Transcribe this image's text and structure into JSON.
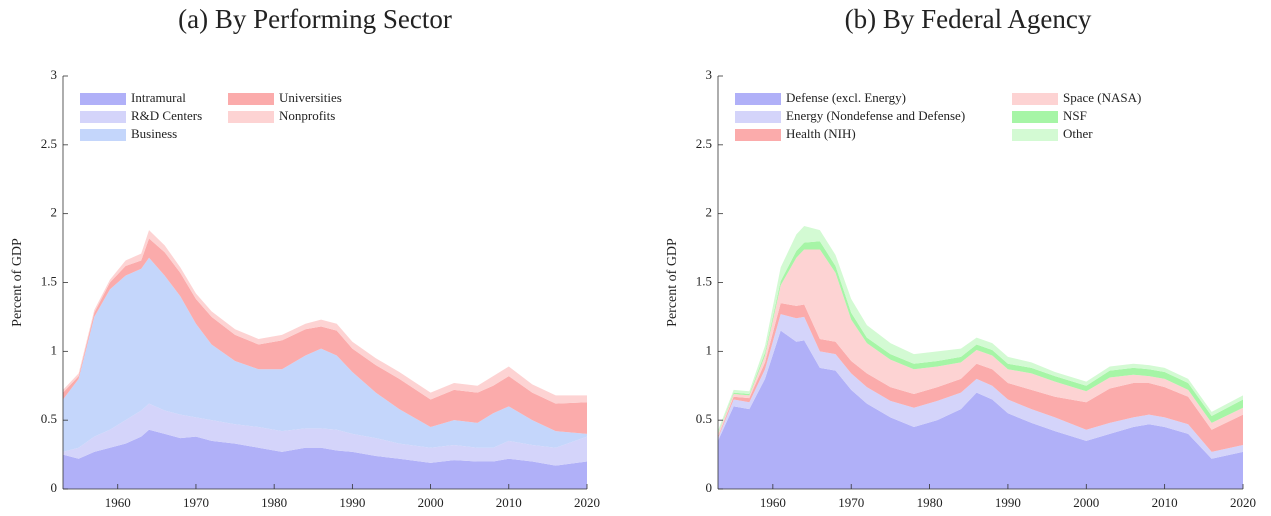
{
  "chart_data": [
    {
      "type": "stacked_area",
      "title": "(a) By Performing Sector",
      "y_label": "Percent of GDP",
      "x": [
        1953,
        1955,
        1957,
        1959,
        1961,
        1963,
        1964,
        1966,
        1968,
        1970,
        1972,
        1975,
        1978,
        1981,
        1984,
        1986,
        1988,
        1990,
        1993,
        1996,
        2000,
        2003,
        2006,
        2008,
        2010,
        2013,
        2016,
        2020
      ],
      "xlim": [
        1953,
        2020
      ],
      "xticks": [
        1960,
        1970,
        1980,
        1990,
        2000,
        2010,
        2020
      ],
      "ylim": [
        0,
        3
      ],
      "yticks": [
        0,
        0.5,
        1,
        1.5,
        2,
        2.5,
        3
      ],
      "series": [
        {
          "name": "Intramural",
          "color": "#b0b0f8",
          "values": [
            0.25,
            0.22,
            0.27,
            0.3,
            0.33,
            0.38,
            0.43,
            0.4,
            0.37,
            0.38,
            0.35,
            0.33,
            0.3,
            0.27,
            0.3,
            0.3,
            0.28,
            0.27,
            0.24,
            0.22,
            0.19,
            0.21,
            0.2,
            0.2,
            0.22,
            0.2,
            0.17,
            0.2
          ]
        },
        {
          "name": "R&D Centers",
          "color": "#d4d4fa",
          "values": [
            0.02,
            0.08,
            0.11,
            0.13,
            0.17,
            0.19,
            0.19,
            0.17,
            0.17,
            0.14,
            0.15,
            0.14,
            0.15,
            0.15,
            0.14,
            0.14,
            0.15,
            0.13,
            0.13,
            0.11,
            0.11,
            0.11,
            0.1,
            0.1,
            0.13,
            0.12,
            0.13,
            0.18
          ]
        },
        {
          "name": "Business",
          "color": "#c4d6fb",
          "values": [
            0.38,
            0.5,
            0.87,
            1.02,
            1.05,
            1.03,
            1.06,
            0.98,
            0.86,
            0.68,
            0.55,
            0.46,
            0.42,
            0.45,
            0.53,
            0.58,
            0.54,
            0.45,
            0.33,
            0.25,
            0.15,
            0.18,
            0.18,
            0.25,
            0.25,
            0.18,
            0.12,
            0.02
          ]
        },
        {
          "name": "Universities",
          "color": "#fbabab",
          "values": [
            0.05,
            0.02,
            0.03,
            0.05,
            0.07,
            0.06,
            0.14,
            0.17,
            0.17,
            0.18,
            0.2,
            0.19,
            0.18,
            0.21,
            0.19,
            0.16,
            0.18,
            0.17,
            0.2,
            0.22,
            0.2,
            0.22,
            0.22,
            0.2,
            0.22,
            0.2,
            0.2,
            0.23
          ]
        },
        {
          "name": "Nonprofits",
          "color": "#fdd3d3",
          "values": [
            0.02,
            0.02,
            0.02,
            0.02,
            0.04,
            0.05,
            0.06,
            0.05,
            0.04,
            0.04,
            0.04,
            0.04,
            0.04,
            0.04,
            0.04,
            0.05,
            0.05,
            0.05,
            0.05,
            0.05,
            0.05,
            0.05,
            0.05,
            0.07,
            0.07,
            0.06,
            0.06,
            0.05
          ]
        }
      ]
    },
    {
      "type": "stacked_area",
      "title": "(b) By Federal Agency",
      "y_label": "Percent of GDP",
      "x": [
        1953,
        1955,
        1957,
        1959,
        1961,
        1963,
        1964,
        1966,
        1968,
        1970,
        1972,
        1975,
        1978,
        1981,
        1984,
        1986,
        1988,
        1990,
        1993,
        1996,
        2000,
        2003,
        2006,
        2008,
        2010,
        2013,
        2016,
        2020
      ],
      "xlim": [
        1953,
        2020
      ],
      "xticks": [
        1960,
        1970,
        1980,
        1990,
        2000,
        2010,
        2020
      ],
      "ylim": [
        0,
        3
      ],
      "yticks": [
        0,
        0.5,
        1,
        1.5,
        2,
        2.5,
        3
      ],
      "series": [
        {
          "name": "Defense (excl. Energy)",
          "color": "#b0b0f8",
          "values": [
            0.35,
            0.6,
            0.58,
            0.8,
            1.15,
            1.07,
            1.08,
            0.88,
            0.86,
            0.72,
            0.62,
            0.52,
            0.45,
            0.5,
            0.58,
            0.7,
            0.65,
            0.55,
            0.48,
            0.42,
            0.35,
            0.4,
            0.45,
            0.47,
            0.45,
            0.4,
            0.22,
            0.27
          ]
        },
        {
          "name": "Energy (Nondefense and Defense)",
          "color": "#d4d4fa",
          "values": [
            0.02,
            0.05,
            0.05,
            0.07,
            0.12,
            0.17,
            0.17,
            0.12,
            0.12,
            0.12,
            0.12,
            0.12,
            0.14,
            0.14,
            0.12,
            0.1,
            0.1,
            0.1,
            0.1,
            0.1,
            0.08,
            0.08,
            0.07,
            0.07,
            0.07,
            0.07,
            0.05,
            0.05
          ]
        },
        {
          "name": "Health (NIH)",
          "color": "#fbabab",
          "values": [
            0.01,
            0.02,
            0.03,
            0.05,
            0.08,
            0.09,
            0.09,
            0.09,
            0.09,
            0.09,
            0.1,
            0.1,
            0.1,
            0.1,
            0.1,
            0.11,
            0.12,
            0.12,
            0.14,
            0.15,
            0.2,
            0.25,
            0.25,
            0.23,
            0.22,
            0.2,
            0.16,
            0.22
          ]
        },
        {
          "name": "Space (NASA)",
          "color": "#fdd3d3",
          "values": [
            0.02,
            0.02,
            0.02,
            0.05,
            0.13,
            0.35,
            0.4,
            0.65,
            0.5,
            0.3,
            0.22,
            0.2,
            0.18,
            0.15,
            0.12,
            0.1,
            0.1,
            0.1,
            0.12,
            0.11,
            0.08,
            0.08,
            0.06,
            0.05,
            0.06,
            0.05,
            0.05,
            0.05
          ]
        },
        {
          "name": "NSF",
          "color": "#a6f5a6",
          "values": [
            0.005,
            0.01,
            0.01,
            0.02,
            0.03,
            0.05,
            0.05,
            0.06,
            0.05,
            0.05,
            0.04,
            0.04,
            0.04,
            0.04,
            0.04,
            0.04,
            0.04,
            0.04,
            0.04,
            0.04,
            0.04,
            0.05,
            0.05,
            0.05,
            0.05,
            0.05,
            0.05,
            0.06
          ]
        },
        {
          "name": "Other",
          "color": "#d3fad3",
          "values": [
            0.02,
            0.02,
            0.02,
            0.05,
            0.1,
            0.12,
            0.12,
            0.08,
            0.08,
            0.1,
            0.09,
            0.08,
            0.07,
            0.07,
            0.06,
            0.05,
            0.05,
            0.05,
            0.04,
            0.03,
            0.03,
            0.03,
            0.03,
            0.03,
            0.03,
            0.03,
            0.03,
            0.03
          ]
        }
      ]
    }
  ]
}
